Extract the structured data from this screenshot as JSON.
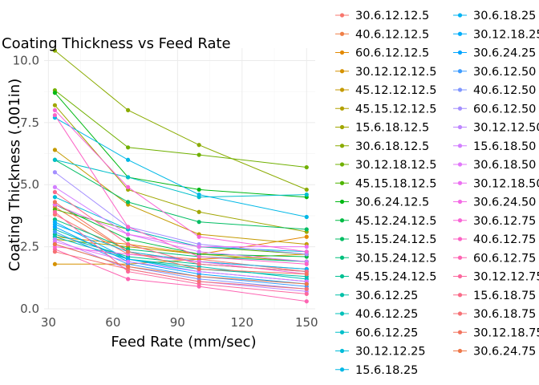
{
  "chart_data": {
    "type": "line",
    "title": "Coating Thickness vs Feed Rate",
    "xlabel": "Feed Rate (mm/sec)",
    "ylabel": "Coating Thickness (.001in)",
    "x": [
      33,
      67,
      100,
      150
    ],
    "xticks": [
      "30",
      "60",
      "90",
      "120",
      "150"
    ],
    "xtick_values": [
      30,
      60,
      90,
      120,
      150
    ],
    "yticks": [
      "0.0",
      "2.5",
      "5.0",
      "7.5",
      "10.0"
    ],
    "ytick_values": [
      0,
      2.5,
      5,
      7.5,
      10
    ],
    "xlim": [
      28,
      154
    ],
    "ylim": [
      0,
      10.5
    ],
    "grid": true,
    "legend_position": "right",
    "legend_title": "",
    "series": [
      {
        "name": "30.6.12.12.5",
        "color": "#F8766D",
        "values": [
          3.8,
          2.2,
          2.0,
          1.5
        ]
      },
      {
        "name": "40.6.12.12.5",
        "color": "#EF7F47",
        "values": [
          4.1,
          2.3,
          1.9,
          1.6
        ]
      },
      {
        "name": "60.6.12.12.5",
        "color": "#E38900",
        "values": [
          2.9,
          2.6,
          2.2,
          2.9
        ]
      },
      {
        "name": "30.12.12.12.5",
        "color": "#D59100",
        "values": [
          1.8,
          1.8,
          2.0,
          2.2
        ]
      },
      {
        "name": "45.12.12.12.5",
        "color": "#C49A00",
        "values": [
          6.4,
          4.2,
          3.0,
          2.6
        ]
      },
      {
        "name": "45.15.12.12.5",
        "color": "#B3A100",
        "values": [
          2.8,
          2.5,
          2.2,
          1.9
        ]
      },
      {
        "name": "15.6.18.12.5",
        "color": "#A0A600",
        "values": [
          8.2,
          4.8,
          3.9,
          3.1
        ]
      },
      {
        "name": "30.6.18.12.5",
        "color": "#8AAB00",
        "values": [
          10.4,
          8.0,
          6.6,
          4.8
        ]
      },
      {
        "name": "30.12.18.12.5",
        "color": "#70B000",
        "values": [
          8.8,
          6.5,
          6.2,
          5.7
        ]
      },
      {
        "name": "45.15.18.12.5",
        "color": "#4EB400",
        "values": [
          4.0,
          3.2,
          2.5,
          2.2
        ]
      },
      {
        "name": "30.6.24.12.5",
        "color": "#00B813",
        "values": [
          8.7,
          5.3,
          4.8,
          4.5
        ]
      },
      {
        "name": "45.12.24.12.5",
        "color": "#00BB44",
        "values": [
          4.2,
          2.8,
          2.2,
          2.1
        ]
      },
      {
        "name": "15.15.24.12.5",
        "color": "#00BD63",
        "values": [
          6.0,
          4.3,
          3.5,
          3.2
        ]
      },
      {
        "name": "30.15.24.12.5",
        "color": "#00BF7C",
        "values": [
          3.6,
          2.4,
          2.1,
          1.9
        ]
      },
      {
        "name": "45.15.24.12.5",
        "color": "#00C092",
        "values": [
          3.0,
          2.1,
          1.8,
          1.5
        ]
      },
      {
        "name": "30.6.12.25",
        "color": "#00C0A7",
        "values": [
          3.2,
          2.0,
          1.6,
          1.3
        ]
      },
      {
        "name": "40.6.12.25",
        "color": "#00C0B9",
        "values": [
          2.9,
          2.0,
          1.7,
          1.2
        ]
      },
      {
        "name": "60.6.12.25",
        "color": "#00BFCA",
        "values": [
          6.0,
          5.3,
          4.5,
          4.6
        ]
      },
      {
        "name": "30.12.12.25",
        "color": "#00BCD9",
        "values": [
          4.5,
          3.2,
          2.5,
          2.3
        ]
      },
      {
        "name": "15.6.18.25",
        "color": "#00B8E6",
        "values": [
          7.7,
          6.0,
          4.6,
          3.7
        ]
      },
      {
        "name": "30.6.18.25",
        "color": "#00B3F2",
        "values": [
          3.4,
          2.3,
          1.9,
          1.6
        ]
      },
      {
        "name": "30.12.18.25",
        "color": "#00ADFA",
        "values": [
          3.5,
          2.0,
          1.5,
          1.1
        ]
      },
      {
        "name": "30.6.24.25",
        "color": "#00A5FF",
        "values": [
          3.3,
          1.9,
          1.4,
          1.0
        ]
      },
      {
        "name": "30.6.12.50",
        "color": "#3D9CFF",
        "values": [
          3.1,
          1.8,
          1.3,
          0.9
        ]
      },
      {
        "name": "40.6.12.50",
        "color": "#7F96FF",
        "values": [
          2.6,
          1.7,
          1.2,
          0.8
        ]
      },
      {
        "name": "60.6.12.50",
        "color": "#A48FFF",
        "values": [
          5.5,
          3.3,
          2.6,
          2.2
        ]
      },
      {
        "name": "30.12.12.50",
        "color": "#BE87FF",
        "values": [
          2.8,
          1.6,
          1.1,
          0.7
        ]
      },
      {
        "name": "15.6.18.50",
        "color": "#D27FFF",
        "values": [
          4.9,
          3.0,
          2.3,
          1.9
        ]
      },
      {
        "name": "30.6.18.50",
        "color": "#E177FA",
        "values": [
          2.7,
          1.9,
          1.5,
          1.1
        ]
      },
      {
        "name": "30.12.18.50",
        "color": "#EC70F1",
        "values": [
          4.2,
          3.0,
          2.5,
          2.5
        ]
      },
      {
        "name": "30.6.24.50",
        "color": "#F46AE5",
        "values": [
          2.5,
          2.2,
          1.9,
          1.4
        ]
      },
      {
        "name": "30.6.12.75",
        "color": "#F965D6",
        "values": [
          8.0,
          4.9,
          2.9,
          2.3
        ]
      },
      {
        "name": "40.6.12.75",
        "color": "#FC63C5",
        "values": [
          7.8,
          3.3,
          2.1,
          1.8
        ]
      },
      {
        "name": "60.6.12.75",
        "color": "#FD64B2",
        "values": [
          2.4,
          1.2,
          0.9,
          0.3
        ]
      },
      {
        "name": "30.12.12.75",
        "color": "#FC679E",
        "values": [
          3.9,
          1.5,
          1.0,
          0.6
        ]
      },
      {
        "name": "15.6.18.75",
        "color": "#FA6B89",
        "values": [
          4.7,
          2.6,
          1.8,
          1.5
        ]
      },
      {
        "name": "30.6.18.75",
        "color": "#F67074",
        "values": [
          2.3,
          1.6,
          1.1,
          0.8
        ]
      },
      {
        "name": "30.12.18.75",
        "color": "#F2735E",
        "values": [
          4.3,
          2.3,
          1.6,
          1.4
        ]
      },
      {
        "name": "30.6.24.75",
        "color": "#EE7748",
        "values": [
          2.6,
          1.7,
          1.3,
          1.0
        ]
      }
    ]
  }
}
